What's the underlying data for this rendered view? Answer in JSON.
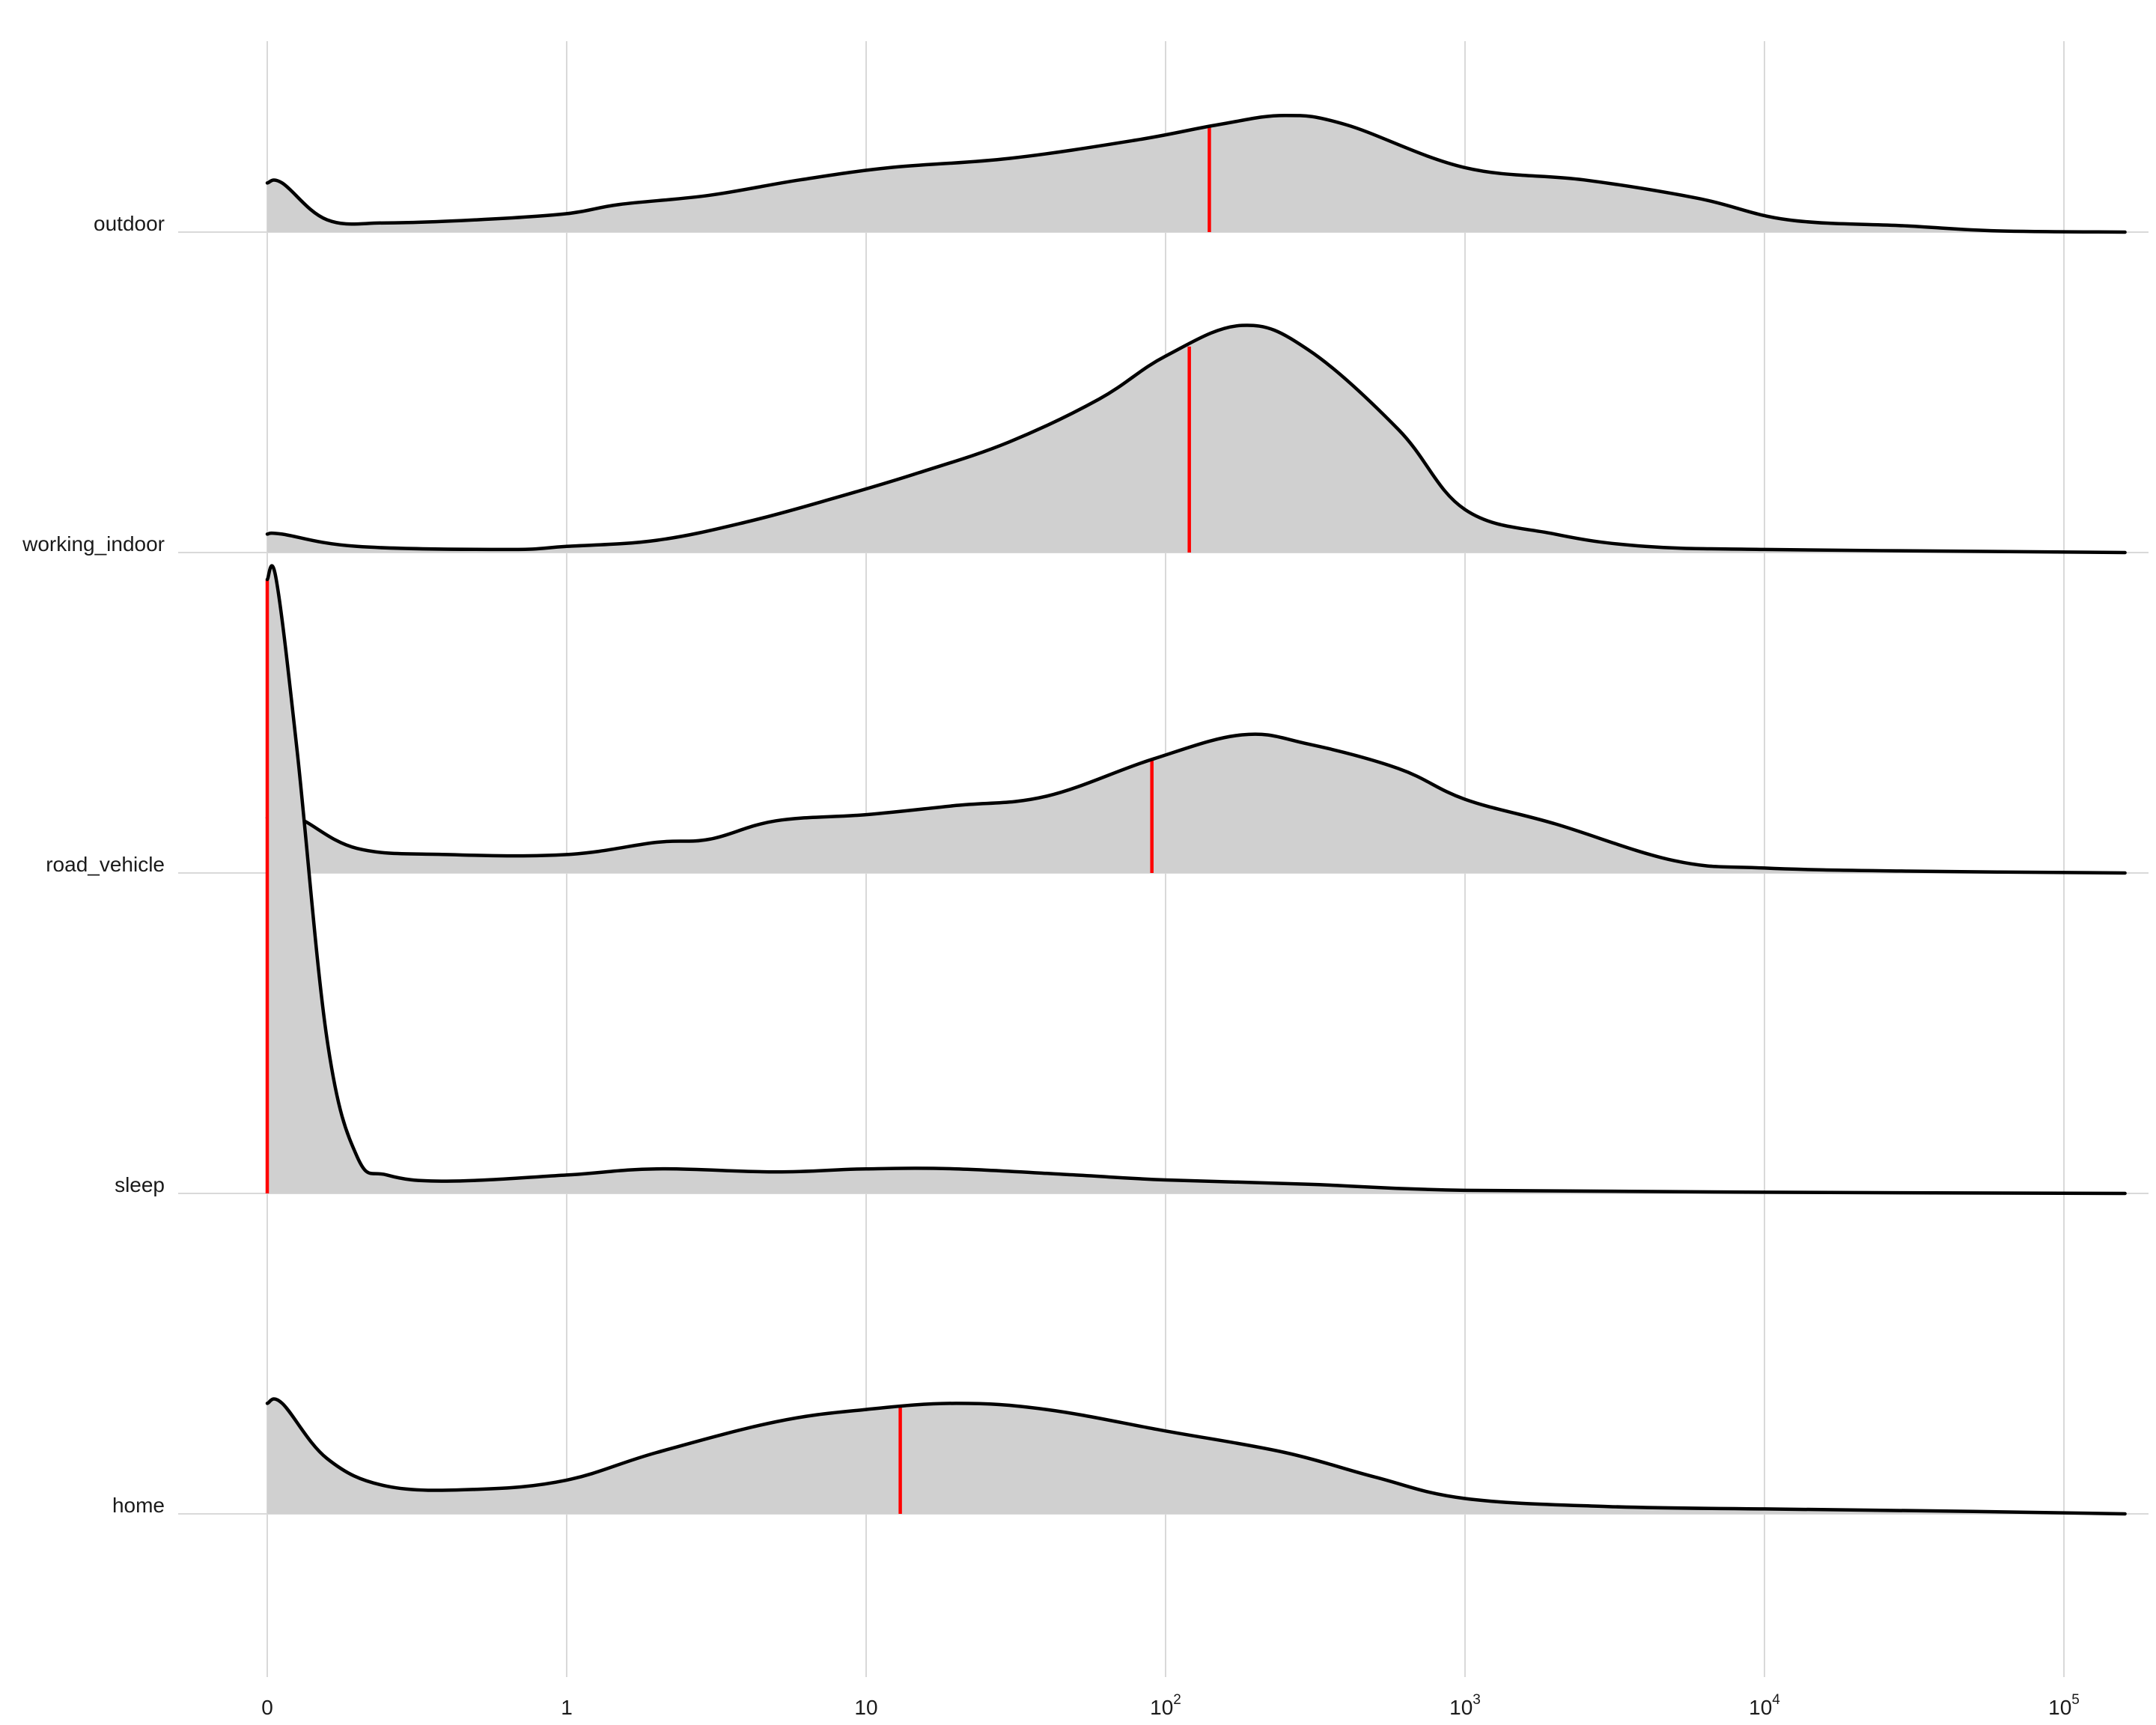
{
  "chart_data": {
    "type": "ridgeline",
    "title": "",
    "xlabel": "",
    "ylabel": "",
    "x_scale": "log",
    "x_ticks": [
      {
        "value": 0,
        "base": "0",
        "exp": ""
      },
      {
        "value": 1,
        "base": "1",
        "exp": ""
      },
      {
        "value": 10,
        "base": "10",
        "exp": ""
      },
      {
        "value": 100,
        "base": "10",
        "exp": "2"
      },
      {
        "value": 1000,
        "base": "10",
        "exp": "3"
      },
      {
        "value": 10000,
        "base": "10",
        "exp": "4"
      },
      {
        "value": 100000,
        "base": "10",
        "exp": "5"
      }
    ],
    "x_range": [
      0,
      160000
    ],
    "grid": true,
    "colors": {
      "fill": "#d0d0d0",
      "line": "#000000",
      "median": "#ff0000",
      "grid": "#d9d9d9"
    },
    "categories": [
      "outdoor",
      "working_indoor",
      "road_vehicle",
      "sleep",
      "home"
    ],
    "series": [
      {
        "name": "outdoor",
        "median": 140,
        "x": [
          0,
          0.05,
          0.2,
          0.4,
          0.7,
          1,
          1.5,
          3,
          6,
          12,
          30,
          80,
          150,
          250,
          400,
          1000,
          2500,
          6000,
          12000,
          30000,
          60000,
          160000
        ],
        "density": [
          0.08,
          0.08,
          0.02,
          0.015,
          0.02,
          0.03,
          0.045,
          0.06,
          0.085,
          0.105,
          0.12,
          0.15,
          0.175,
          0.19,
          0.175,
          0.105,
          0.085,
          0.055,
          0.02,
          0.01,
          0.002,
          0.0
        ]
      },
      {
        "name": "working_indoor",
        "median": 120,
        "x": [
          0,
          0.05,
          0.3,
          0.8,
          1,
          2,
          4,
          8,
          15,
          30,
          60,
          100,
          180,
          300,
          600,
          1000,
          2000,
          4000,
          10000,
          50000,
          160000
        ],
        "density": [
          0.03,
          0.03,
          0.01,
          0.005,
          0.01,
          0.02,
          0.05,
          0.09,
          0.13,
          0.18,
          0.25,
          0.32,
          0.37,
          0.33,
          0.2,
          0.07,
          0.03,
          0.01,
          0.005,
          0.002,
          0.0
        ]
      },
      {
        "name": "road_vehicle",
        "median": 90,
        "x": [
          0,
          0.1,
          0.3,
          0.6,
          1,
          2,
          3,
          5,
          10,
          20,
          40,
          90,
          180,
          300,
          600,
          1000,
          2000,
          5000,
          10000,
          30000,
          160000
        ],
        "density": [
          0.09,
          0.09,
          0.04,
          0.03,
          0.03,
          0.05,
          0.055,
          0.085,
          0.095,
          0.11,
          0.125,
          0.185,
          0.225,
          0.21,
          0.17,
          0.12,
          0.08,
          0.02,
          0.008,
          0.003,
          0.0
        ]
      },
      {
        "name": "sleep",
        "median": 0,
        "x": [
          0,
          0.03,
          0.1,
          0.2,
          0.3,
          0.4,
          0.6,
          1,
          2,
          5,
          10,
          20,
          50,
          100,
          300,
          1000,
          10000,
          160000
        ],
        "density": [
          1.0,
          1.0,
          0.72,
          0.25,
          0.06,
          0.03,
          0.02,
          0.03,
          0.04,
          0.035,
          0.04,
          0.04,
          0.03,
          0.022,
          0.015,
          0.005,
          0.002,
          0.0
        ]
      },
      {
        "name": "home",
        "median": 13,
        "x": [
          0,
          0.05,
          0.2,
          0.4,
          0.7,
          1,
          2,
          5,
          10,
          20,
          40,
          100,
          250,
          500,
          1000,
          3000,
          10000,
          50000,
          160000
        ],
        "density": [
          0.18,
          0.18,
          0.09,
          0.045,
          0.04,
          0.055,
          0.1,
          0.15,
          0.17,
          0.18,
          0.17,
          0.135,
          0.1,
          0.06,
          0.025,
          0.012,
          0.008,
          0.004,
          0.0
        ]
      }
    ]
  }
}
